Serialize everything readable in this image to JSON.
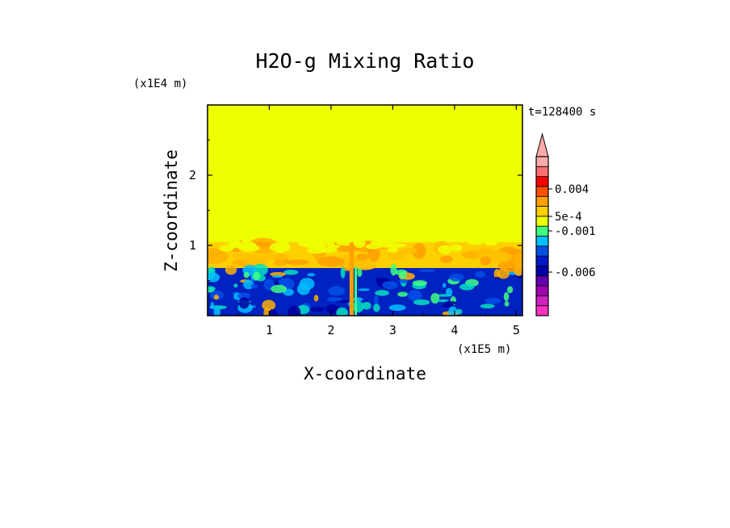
{
  "chart_data": {
    "type": "heatmap",
    "title": "H2O-g Mixing Ratio",
    "xlabel": "X-coordinate",
    "ylabel": "Z-coordinate",
    "x_unit": "(x1E5 m)",
    "y_unit": "(x1E4 m)",
    "time_label": "t=128400 s",
    "xlim": [
      0,
      5.1
    ],
    "ylim": [
      0,
      3.0
    ],
    "x_ticks": [
      1,
      2,
      3,
      4,
      5
    ],
    "y_ticks": [
      1,
      2
    ],
    "regions": [
      {
        "z_range": [
          1.05,
          3.0
        ],
        "value_range": [
          0,
          0.0005
        ],
        "description_color": "#eeff00"
      },
      {
        "z_range": [
          0.7,
          1.05
        ],
        "value_range": [
          0.0005,
          0.004
        ],
        "description_color": "#ffcc00"
      },
      {
        "z_range": [
          0.0,
          0.7
        ],
        "value_range": [
          -0.006,
          -0.001
        ],
        "description_color": "#0022cc"
      }
    ],
    "colorbar": {
      "extend": "max",
      "labels": [
        {
          "text": "0.004",
          "value": 0.004
        },
        {
          "text": "5e-4",
          "value": 0.0005
        },
        {
          "text": "-0.001",
          "value": -0.001
        },
        {
          "text": "-0.006",
          "value": -0.006
        }
      ],
      "colors": [
        "#ff30c0",
        "#d020c0",
        "#a000b0",
        "#6000b0",
        "#0000aa",
        "#0018c8",
        "#0050e8",
        "#00c0ff",
        "#40ff80",
        "#eeff00",
        "#ffd000",
        "#ffa000",
        "#ff5000",
        "#ff0000",
        "#ff7070",
        "#ffaaaa"
      ]
    }
  }
}
